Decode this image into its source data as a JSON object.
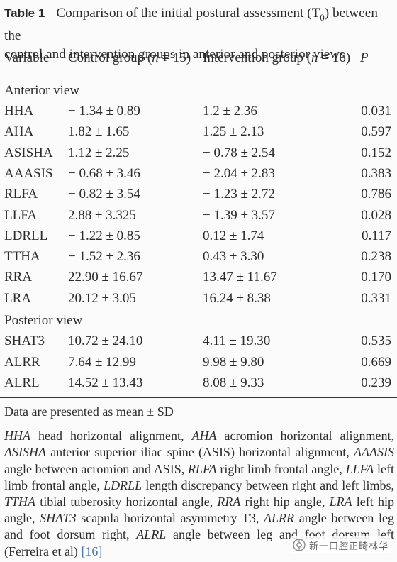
{
  "caption": {
    "label": "Table 1",
    "line1": "Comparison of the initial postural assessment (T",
    "line1_sub": "0",
    "line1_end": ") between the",
    "line2": "control and intervention groups in anterior and posterior views"
  },
  "header": {
    "variable": "Variable",
    "control_prefix": "Control group (",
    "control_n": "n",
    "control_suffix": " = 15)",
    "intervention_prefix": "Intervention group (",
    "intervention_n": "n",
    "intervention_suffix": " = 16)",
    "p": "P"
  },
  "sections": {
    "anterior": "Anterior view",
    "posterior": "Posterior view"
  },
  "rows": [
    {
      "variable": "HHA",
      "control": "− 1.34 ± 0.89",
      "intervention": "1.2 ± 2.36",
      "p": "0.031"
    },
    {
      "variable": "AHA",
      "control": "1.82 ± 1.65",
      "intervention": "1.25 ± 2.13",
      "p": "0.597"
    },
    {
      "variable": "ASISHA",
      "control": "1.12 ± 2.25",
      "intervention": "− 0.78 ± 2.54",
      "p": "0.152"
    },
    {
      "variable": "AAASIS",
      "control": "− 0.68 ± 3.46",
      "intervention": "− 2.04 ± 2.83",
      "p": "0.383"
    },
    {
      "variable": "RLFA",
      "control": "− 0.82 ± 3.54",
      "intervention": "− 1.23 ± 2.72",
      "p": "0.786"
    },
    {
      "variable": "LLFA",
      "control": "2.88 ± 3.325",
      "intervention": "− 1.39 ± 3.57",
      "p": "0.028"
    },
    {
      "variable": "LDRLL",
      "control": "− 1.22 ± 0.85",
      "intervention": "0.12 ± 1.74",
      "p": "0.117"
    },
    {
      "variable": "TTHA",
      "control": "− 1.52 ± 2.36",
      "intervention": "0.43 ± 3.30",
      "p": "0.238"
    },
    {
      "variable": "RRA",
      "control": "22.90 ± 16.67",
      "intervention": "13.47 ± 11.67",
      "p": "0.170"
    },
    {
      "variable": "LRA",
      "control": "20.12 ± 3.05",
      "intervention": "16.24 ± 8.38",
      "p": "0.331"
    },
    {
      "variable": "SHAT3",
      "control": "10.72 ± 24.10",
      "intervention": "4.11 ± 19.30",
      "p": "0.535"
    },
    {
      "variable": "ALRR",
      "control": "7.64 ± 12.99",
      "intervention": "9.98 ± 9.80",
      "p": "0.669"
    },
    {
      "variable": "ALRL",
      "control": "14.52 ± 13.43",
      "intervention": "8.08 ± 9.33",
      "p": "0.239"
    }
  ],
  "notes": {
    "sd": "Data are presented as mean ± SD",
    "abbr": [
      {
        "term": "HHA",
        "def": " head horizontal alignment, "
      },
      {
        "term": "AHA",
        "def": " acromion horizontal alignment, "
      },
      {
        "term": "ASISHA",
        "def": " anterior superior iliac spine (ASIS) horizontal alignment, "
      },
      {
        "term": "AAASIS",
        "def": " angle between acromion and ASIS, "
      },
      {
        "term": "RLFA",
        "def": " right limb frontal angle, "
      },
      {
        "term": "LLFA",
        "def": " left limb frontal angle, "
      },
      {
        "term": "LDRLL",
        "def": " length discrepancy between right and left limbs, "
      },
      {
        "term": "TTHA",
        "def": " tibial tuberosity horizontal angle, "
      },
      {
        "term": "RRA",
        "def": " right hip angle, "
      },
      {
        "term": "LRA",
        "def": " left hip angle, "
      },
      {
        "term": "SHAT3",
        "def": " scapula horizontal asymmetry T3, "
      },
      {
        "term": "ALRR",
        "def": " angle between leg and foot dorsum right, "
      },
      {
        "term": "ALRL",
        "def": " angle between leg and foot dorsum left (Ferreira et al) "
      }
    ],
    "reference": "[16]"
  },
  "watermark": {
    "text": "新一口腔正畸林华",
    "icon": "wechat-official-account-icon"
  }
}
